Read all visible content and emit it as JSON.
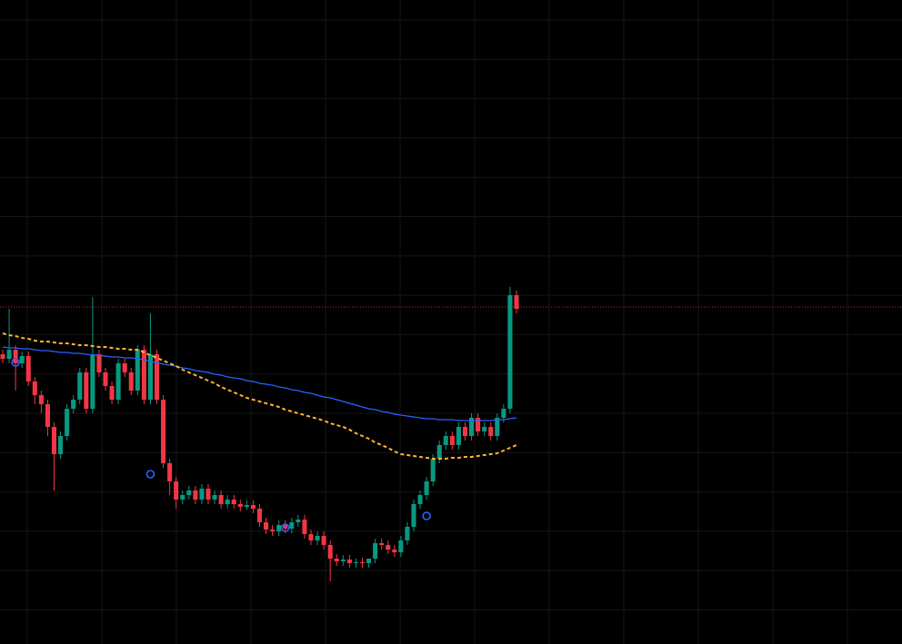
{
  "chart_data": {
    "type": "candlestick",
    "ylim": [
      0,
      709
    ],
    "grid": true,
    "up_color": "#089981",
    "down_color": "#f23645",
    "open": [
      319,
      314,
      324,
      309,
      317,
      289,
      274,
      264,
      239,
      209,
      229,
      259,
      269,
      299,
      259,
      319,
      299,
      284,
      269,
      309,
      299,
      279,
      324,
      269,
      319,
      269,
      199,
      179,
      159,
      164,
      169,
      159,
      171,
      159,
      164,
      154,
      159,
      154,
      151,
      153,
      149,
      134,
      126,
      124,
      131,
      127,
      134,
      137,
      121,
      114,
      119,
      109,
      94,
      91,
      93,
      89,
      90,
      89,
      94,
      111,
      109,
      104,
      101,
      114,
      129,
      154,
      164,
      179,
      204,
      219,
      229,
      219,
      239,
      229,
      249,
      234,
      239,
      229,
      249,
      259,
      384
    ],
    "high": [
      324,
      369,
      329,
      322,
      322,
      294,
      279,
      269,
      244,
      234,
      264,
      274,
      304,
      304,
      382,
      324,
      304,
      289,
      314,
      314,
      304,
      329,
      329,
      364,
      324,
      274,
      204,
      184,
      169,
      174,
      174,
      176,
      176,
      169,
      169,
      164,
      164,
      159,
      158,
      158,
      154,
      139,
      131,
      136,
      136,
      139,
      142,
      142,
      126,
      124,
      124,
      114,
      99,
      98,
      98,
      94,
      95,
      94,
      116,
      116,
      114,
      109,
      119,
      134,
      159,
      169,
      184,
      209,
      224,
      234,
      234,
      244,
      244,
      254,
      254,
      244,
      244,
      254,
      264,
      393,
      389
    ],
    "low": [
      309,
      309,
      279,
      304,
      284,
      264,
      254,
      229,
      169,
      204,
      224,
      254,
      264,
      254,
      254,
      294,
      279,
      264,
      264,
      294,
      274,
      274,
      264,
      264,
      264,
      194,
      164,
      149,
      154,
      159,
      154,
      154,
      154,
      154,
      149,
      149,
      149,
      146,
      148,
      144,
      129,
      121,
      119,
      119,
      122,
      122,
      129,
      116,
      109,
      109,
      104,
      69,
      86,
      86,
      84,
      84,
      84,
      84,
      89,
      104,
      99,
      96,
      96,
      109,
      124,
      149,
      159,
      174,
      199,
      214,
      214,
      214,
      224,
      224,
      229,
      229,
      224,
      224,
      244,
      254,
      364
    ],
    "close": [
      314,
      324,
      309,
      317,
      289,
      274,
      264,
      239,
      209,
      229,
      259,
      269,
      299,
      259,
      319,
      299,
      284,
      269,
      309,
      299,
      279,
      324,
      269,
      319,
      269,
      199,
      179,
      159,
      164,
      169,
      159,
      171,
      159,
      164,
      154,
      159,
      154,
      151,
      153,
      149,
      134,
      126,
      124,
      131,
      127,
      134,
      137,
      121,
      114,
      119,
      109,
      94,
      91,
      93,
      89,
      90,
      89,
      94,
      111,
      109,
      104,
      101,
      114,
      129,
      154,
      164,
      179,
      204,
      219,
      229,
      219,
      239,
      229,
      249,
      234,
      239,
      229,
      249,
      259,
      384,
      369
    ],
    "series": [
      {
        "color": "#2962ff",
        "style": "solid",
        "values": [
          327,
          326,
          326,
          325,
          325,
          324,
          323,
          323,
          322,
          321,
          321,
          320,
          320,
          319,
          318,
          318,
          317,
          316,
          316,
          315,
          315,
          314,
          313,
          311,
          310,
          308,
          307,
          306,
          304,
          303,
          301,
          300,
          299,
          297,
          296,
          294,
          293,
          292,
          290,
          289,
          287,
          286,
          285,
          283,
          282,
          280,
          279,
          277,
          276,
          274,
          272,
          271,
          269,
          267,
          265,
          263,
          261,
          259,
          258,
          256,
          255,
          253,
          252,
          251,
          250,
          249,
          248,
          248,
          247,
          247,
          247,
          246,
          246,
          246,
          246,
          246,
          246,
          247,
          247,
          248,
          249
        ]
      },
      {
        "color": "#ffb52e",
        "style": "dashed",
        "values": [
          342,
          340,
          339,
          337,
          336,
          334,
          333,
          333,
          332,
          331,
          331,
          330,
          329,
          329,
          328,
          327,
          327,
          326,
          325,
          325,
          324,
          324,
          321,
          318,
          315,
          312,
          309,
          306,
          302,
          299,
          296,
          293,
          290,
          287,
          283,
          280,
          277,
          274,
          271,
          269,
          267,
          265,
          263,
          261,
          258,
          256,
          254,
          252,
          250,
          248,
          246,
          243,
          241,
          239,
          236,
          232,
          229,
          226,
          222,
          219,
          216,
          212,
          209,
          208,
          207,
          206,
          205,
          204,
          204,
          204,
          205,
          205,
          206,
          206,
          207,
          208,
          209,
          210,
          213,
          216,
          219
        ]
      }
    ],
    "signals": {
      "color": "#2962ff",
      "x": [
        2,
        23,
        44,
        66
      ],
      "values": [
        310,
        187,
        128,
        141
      ]
    },
    "price_line": {
      "color": "#f23645",
      "value": 371
    }
  }
}
